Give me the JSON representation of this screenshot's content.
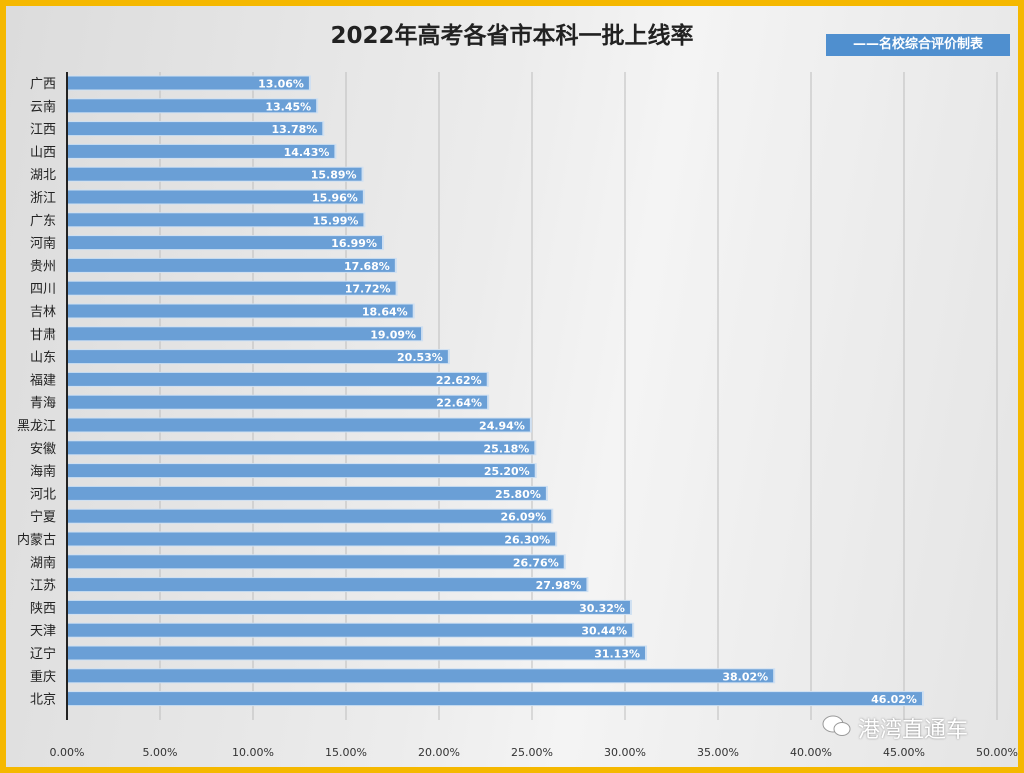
{
  "chart_data": {
    "type": "bar",
    "orientation": "horizontal",
    "title": "2022年高考各省市本科一批上线率",
    "legend": "——名校综合评价制表",
    "legend_position": "top-right",
    "xlim": [
      0,
      50
    ],
    "x_ticks": [
      "0.00%",
      "5.00%",
      "10.00%",
      "15.00%",
      "20.00%",
      "25.00%",
      "30.00%",
      "35.00%",
      "40.00%",
      "45.00%",
      "50.00%"
    ],
    "grid": true,
    "bar_color": "#6a9fd6",
    "categories": [
      "广西",
      "云南",
      "江西",
      "山西",
      "湖北",
      "浙江",
      "广东",
      "河南",
      "贵州",
      "四川",
      "吉林",
      "甘肃",
      "山东",
      "福建",
      "青海",
      "黑龙江",
      "安徽",
      "海南",
      "河北",
      "宁夏",
      "内蒙古",
      "湖南",
      "江苏",
      "陕西",
      "天津",
      "辽宁",
      "重庆",
      "北京"
    ],
    "values": [
      13.06,
      13.45,
      13.78,
      14.43,
      15.89,
      15.96,
      15.99,
      16.99,
      17.68,
      17.72,
      18.64,
      19.09,
      20.53,
      22.62,
      22.64,
      24.94,
      25.18,
      25.2,
      25.8,
      26.09,
      26.3,
      26.76,
      27.98,
      30.32,
      30.44,
      31.13,
      38.02,
      46.02
    ],
    "data_labels": [
      "13.06%",
      "13.45%",
      "13.78%",
      "14.43%",
      "15.89%",
      "15.96%",
      "15.99%",
      "16.99%",
      "17.68%",
      "17.72%",
      "18.64%",
      "19.09%",
      "20.53%",
      "22.62%",
      "22.64%",
      "24.94%",
      "25.18%",
      "25.20%",
      "25.80%",
      "26.09%",
      "26.30%",
      "26.76%",
      "27.98%",
      "30.32%",
      "30.44%",
      "31.13%",
      "38.02%",
      "46.02%"
    ]
  },
  "watermark": "港湾直通车"
}
